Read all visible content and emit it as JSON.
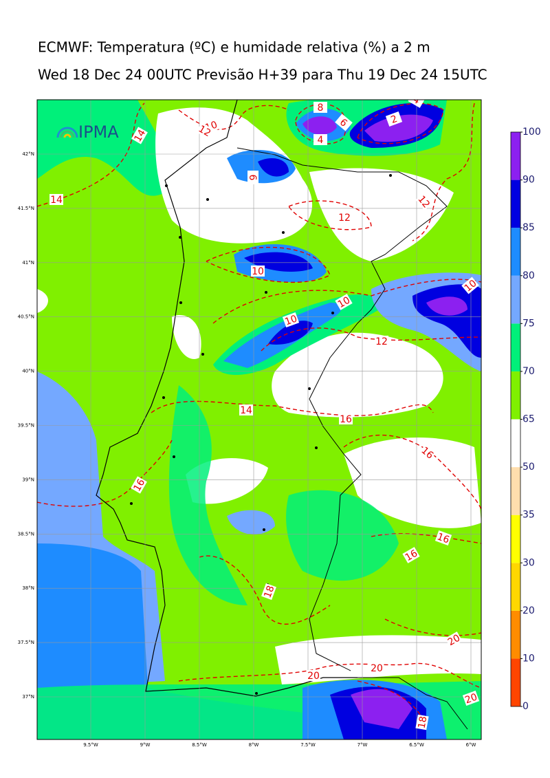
{
  "title": "ECMWF: Temperatura (ºC) e humidade relativa (%) a 2 m",
  "subtitle": "Wed 18 Dec 24 00UTC Previsão H+39 para Thu 19 Dec 24 15UTC",
  "logo": "IPMA",
  "lat_ticks": [
    {
      "value": 42,
      "label": "42°N"
    },
    {
      "value": 41.5,
      "label": "41.5°N"
    },
    {
      "value": 41,
      "label": "41°N"
    },
    {
      "value": 40.5,
      "label": "40.5°N"
    },
    {
      "value": 40,
      "label": "40°N"
    },
    {
      "value": 39.5,
      "label": "39.5°N"
    },
    {
      "value": 39,
      "label": "39°N"
    },
    {
      "value": 38.5,
      "label": "38.5°N"
    },
    {
      "value": 38,
      "label": "38°N"
    },
    {
      "value": 37.5,
      "label": "37.5°N"
    },
    {
      "value": 37,
      "label": "37°N"
    }
  ],
  "lon_ticks": [
    {
      "value": -9.5,
      "label": "9.5°W"
    },
    {
      "value": -9,
      "label": "9°W"
    },
    {
      "value": -8.5,
      "label": "8.5°W"
    },
    {
      "value": -8,
      "label": "8°W"
    },
    {
      "value": -7.5,
      "label": "7.5°W"
    },
    {
      "value": -7,
      "label": "7°W"
    },
    {
      "value": -6.5,
      "label": "6.5°W"
    },
    {
      "value": -6,
      "label": "6°W"
    }
  ],
  "colorbar": {
    "ticks": [
      0,
      10,
      20,
      30,
      35,
      50,
      65,
      70,
      75,
      80,
      85,
      90,
      100
    ],
    "colors": [
      "#ff4500",
      "#ff8c00",
      "#ffd700",
      "#ffff00",
      "#ffdead",
      "#ffffff",
      "#80f000",
      "#00f07a",
      "#74a8ff",
      "#1e8cff",
      "#0000e0",
      "#8c20f0"
    ]
  },
  "contour_labels": [
    14,
    10,
    12,
    8,
    6,
    4,
    4,
    2,
    6,
    14,
    12,
    12,
    10,
    10,
    10,
    10,
    12,
    14,
    16,
    16,
    16,
    16,
    16,
    18,
    20,
    20,
    20,
    20,
    18
  ]
}
